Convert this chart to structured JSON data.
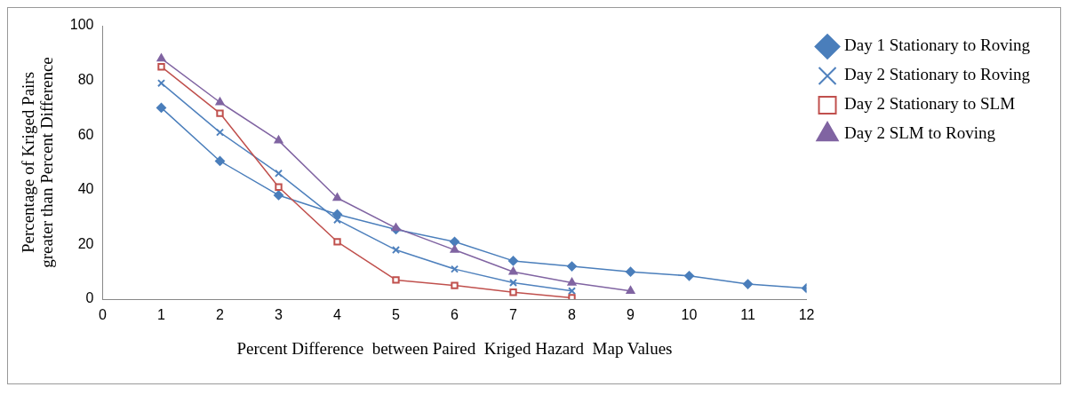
{
  "chart_data": {
    "type": "line",
    "xlabel": "Percent Difference  between Paired  Kriged Hazard  Map Values",
    "ylabel": "Percentage of Kriged Pairs greater than Percent Difference",
    "xlim": [
      0,
      12
    ],
    "xticks": [
      0,
      1,
      2,
      3,
      4,
      5,
      6,
      7,
      8,
      9,
      10,
      11,
      12
    ],
    "ylim": [
      0,
      100
    ],
    "yticks": [
      0,
      20,
      40,
      60,
      80,
      100
    ],
    "grid": false,
    "legend": "top right",
    "line_style": "solid",
    "series": [
      {
        "name": "Day 1 Stationary to Roving",
        "color": "#4a7ebb",
        "marker": "diamond",
        "x": [
          1,
          2,
          3,
          4,
          5,
          6,
          7,
          8,
          9,
          10,
          11,
          12
        ],
        "values": [
          70,
          50.5,
          38,
          31,
          25.5,
          21,
          14,
          12,
          10,
          8.5,
          5.5,
          4
        ]
      },
      {
        "name": "Day 2 Stationary to Roving",
        "color": "#4f81bd",
        "marker": "cross",
        "x": [
          1,
          2,
          3,
          4,
          5,
          6,
          7,
          8
        ],
        "values": [
          79,
          61,
          46,
          29,
          18,
          11,
          6,
          3
        ]
      },
      {
        "name": "Day 2 Stationary to SLM",
        "color": "#c0504d",
        "marker": "square",
        "x": [
          1,
          2,
          3,
          4,
          5,
          6,
          7,
          8
        ],
        "values": [
          85,
          68,
          41,
          21,
          7,
          5,
          2.5,
          0.5
        ]
      },
      {
        "name": "Day 2 SLM to Roving",
        "color": "#8064a2",
        "marker": "triangle",
        "x": [
          1,
          2,
          3,
          4,
          5,
          6,
          7,
          8,
          9
        ],
        "values": [
          88,
          72,
          58,
          37,
          26,
          18,
          10,
          6,
          3
        ]
      }
    ]
  }
}
